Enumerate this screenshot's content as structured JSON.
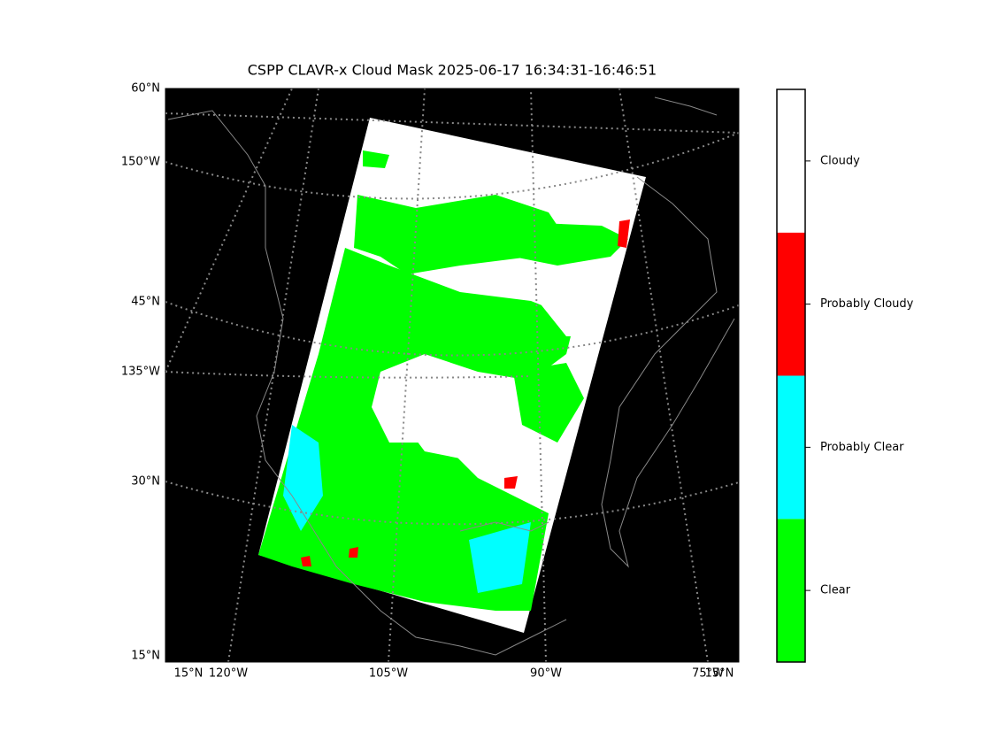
{
  "title": "CSPP CLAVR-x Cloud Mask 2025-06-17 16:34:31-16:46:51",
  "left_labels": [
    "60°N",
    "150°W",
    "45°N",
    "135°W",
    "30°N",
    "15°N"
  ],
  "bottom_labels": [
    "15°N",
    "120°W",
    "105°W",
    "90°W",
    "75°W",
    "15°N"
  ],
  "colorbar": {
    "items": [
      {
        "label": "Clear",
        "color": "#00ff00"
      },
      {
        "label": "Probably Clear",
        "color": "#00ffff"
      },
      {
        "label": "Probably Cloudy",
        "color": "#ff0000"
      },
      {
        "label": "Cloudy",
        "color": "#ffffff"
      }
    ]
  }
}
